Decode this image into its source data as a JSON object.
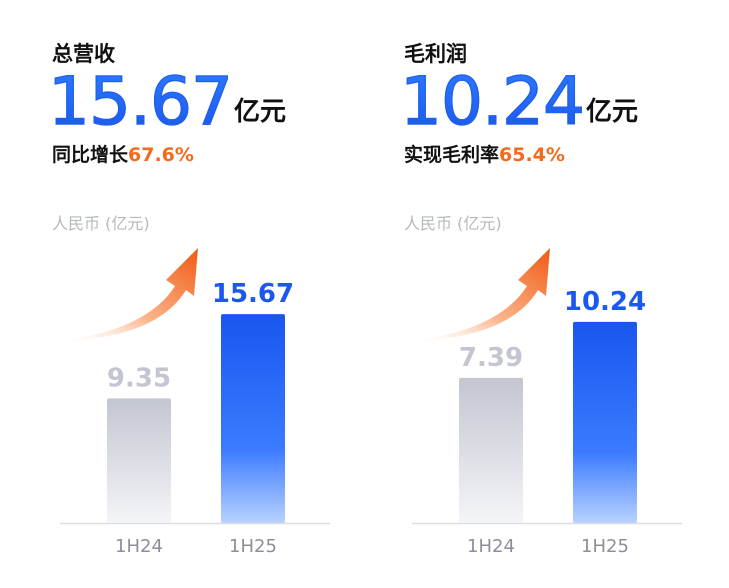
{
  "panels": [
    {
      "title": "总营收",
      "big_value": "15.67",
      "big_unit": "亿元",
      "sub_label": "同比增长",
      "sub_value": "67.6%",
      "unit_label": "人民币 (亿元)"
    },
    {
      "title": "毛利润",
      "big_value": "10.24",
      "big_unit": "亿元",
      "sub_label": "实现毛利率",
      "sub_value": "65.4%",
      "unit_label": "人民币 (亿元)"
    }
  ],
  "chart_data": [
    {
      "type": "bar",
      "title": "总营收",
      "ylabel": "人民币 (亿元)",
      "categories": [
        "1H24",
        "1H25"
      ],
      "values": [
        9.35,
        15.67
      ],
      "data_labels": [
        "9.35",
        "15.67"
      ],
      "ylim": [
        0,
        16.5
      ],
      "grid": false,
      "colors": [
        "#c7cad4",
        "#1f5ff0"
      ]
    },
    {
      "type": "bar",
      "title": "毛利润",
      "ylabel": "人民币 (亿元)",
      "categories": [
        "1H24",
        "1H25"
      ],
      "values": [
        7.39,
        10.24
      ],
      "data_labels": [
        "7.39",
        "10.24"
      ],
      "ylim": [
        0,
        11.2
      ],
      "grid": false,
      "colors": [
        "#c7cad4",
        "#1f5ff0"
      ]
    }
  ]
}
